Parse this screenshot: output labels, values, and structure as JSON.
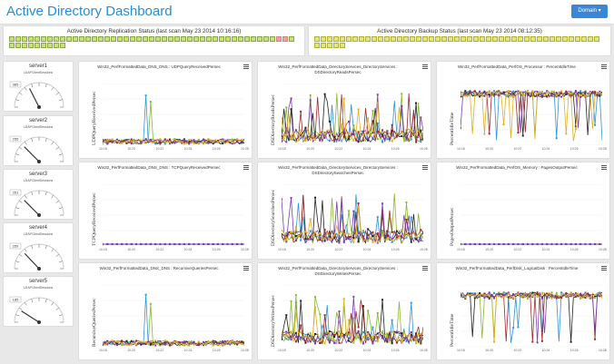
{
  "header": {
    "title": "Active Directory Dashboard",
    "domain_button": "Domain ▾"
  },
  "colors": {
    "ok": "#c8e07a",
    "warn": "#e0e87a",
    "fail": "#e8a4a4",
    "accent": "#2a8bd4"
  },
  "status": {
    "replication": {
      "title": "Active Directory Replication Status (last scan May 23 2014 10:16:16)",
      "count": 54,
      "fail_indices": [
        42,
        43
      ]
    },
    "backup": {
      "title": "Active Directory Backup Status (last scan May 23 2014 08:12:35)",
      "count": 50
    }
  },
  "servers": [
    {
      "name": "server1",
      "metric": "LDAPClientSessions",
      "value": "385",
      "level": 0.35
    },
    {
      "name": "server2",
      "metric": "LDAPClientSessions",
      "value": "255",
      "level": 0.25
    },
    {
      "name": "server3",
      "metric": "LDAPClientSessions",
      "value": "251",
      "level": 0.25
    },
    {
      "name": "server4",
      "metric": "LDAPClientSessions",
      "value": "259",
      "level": 0.26
    },
    {
      "name": "server5",
      "metric": "LDAPClientSessions",
      "value": "185",
      "level": 0.18
    }
  ],
  "charts": [
    {
      "title": "Win32_PerfFormattedData_DNS_DNS : UDPQueryReceivedPersec",
      "ylabel": "UDPQueryReceivedPersec",
      "kind": "spike"
    },
    {
      "title": "Win32_PerfFormattedData_DirectoryServices_DirectoryServices : DSDirectoryReadsPersec",
      "ylabel": "DSDirectoryReadsPersec",
      "kind": "noisy"
    },
    {
      "title": "Win32_PerfFormattedData_PerfOS_Processor : PercentIdleTime",
      "ylabel": "PercentIdleTime",
      "kind": "high"
    },
    {
      "title": "Win32_PerfFormattedData_DNS_DNS : TCPQueryReceivedPersec",
      "ylabel": "TCPQueryReceivedPersec",
      "kind": "flat"
    },
    {
      "title": "Win32_PerfFormattedData_DirectoryServices_DirectoryServices : DSDirectorySearchesPersec",
      "ylabel": "DSDirectorySearchesPersec",
      "kind": "noisy"
    },
    {
      "title": "Win32_PerfFormattedData_PerfOS_Memory : PagesOutputPersec",
      "ylabel": "PagesOutputPersec",
      "kind": "flat"
    },
    {
      "title": "Win32_PerfFormattedData_DNS_DNS : RecursiveQueriesPersec",
      "ylabel": "RecursiveQueriesPersec",
      "kind": "spike"
    },
    {
      "title": "Win32_PerfFormattedData_DirectoryServices_DirectoryServices : DSDirectoryWritesPersec",
      "ylabel": "DSDirectoryWritesPersec",
      "kind": "noisy"
    },
    {
      "title": "Win32_PerfFormattedData_PerfDisk_LogicalDisk : PercentIdleTime",
      "ylabel": "PercentIdleTime",
      "kind": "high"
    }
  ],
  "x_ticks": [
    "10:18",
    "10:20",
    "10:22",
    "10:24",
    "10:26",
    "10:28"
  ],
  "series_colors": [
    "#2f95d6",
    "#8ab82e",
    "#222222",
    "#9b2b2b",
    "#7a3fb0",
    "#e0b020",
    "#35b0a8",
    "#c8d040"
  ]
}
